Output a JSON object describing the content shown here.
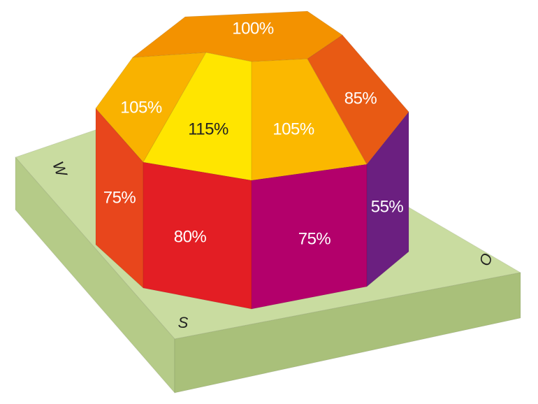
{
  "faces": [
    {
      "label": "100%"
    },
    {
      "label": "105%"
    },
    {
      "label": "115%"
    },
    {
      "label": "105%"
    },
    {
      "label": "85%"
    },
    {
      "label": "75%"
    },
    {
      "label": "80%"
    },
    {
      "label": "75%"
    },
    {
      "label": "55%"
    }
  ],
  "compass": {
    "west": "W",
    "south": "S",
    "east": "O"
  }
}
